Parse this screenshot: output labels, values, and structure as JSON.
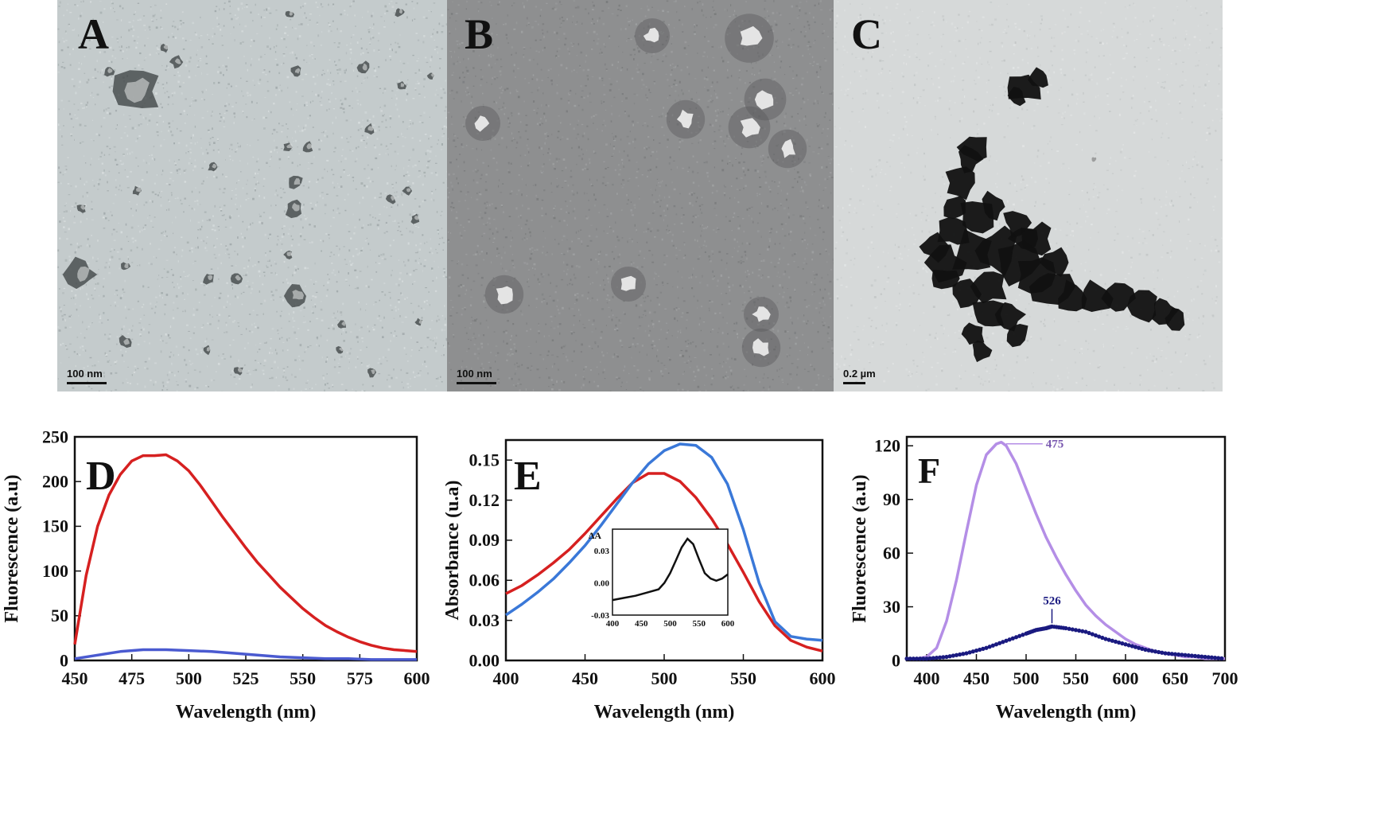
{
  "tem_panels": [
    {
      "letter": "A",
      "scale_label": "100 nm"
    },
    {
      "letter": "B",
      "scale_label": "100 nm"
    },
    {
      "letter": "C",
      "scale_label": "0.2 µm"
    }
  ],
  "colors": {
    "red": "#d62020",
    "blue": "#3a78d8",
    "violet_blue": "#4a5ad0",
    "lavender": "#b48ee6",
    "navy": "#1a1a80",
    "black": "#111111",
    "tem_a_bg": "#c4cbcc",
    "tem_b_bg": "#8e8f90",
    "tem_c_bg": "#d6d9d9"
  },
  "chart_data": [
    {
      "panel": "D",
      "type": "line",
      "xlabel": "Wavelength (nm)",
      "ylabel": "Fluorescence (a.u)",
      "xlim": [
        450,
        600
      ],
      "ylim": [
        0,
        250
      ],
      "xticks": [
        450,
        475,
        500,
        525,
        550,
        575,
        600
      ],
      "yticks": [
        0,
        50,
        100,
        150,
        200,
        250
      ],
      "grid": false,
      "series": [
        {
          "color": "#d62020",
          "x": [
            450,
            455,
            460,
            465,
            470,
            475,
            480,
            485,
            490,
            495,
            500,
            505,
            510,
            515,
            520,
            525,
            530,
            535,
            540,
            545,
            550,
            555,
            560,
            565,
            570,
            575,
            580,
            585,
            590,
            595,
            600
          ],
          "y": [
            18,
            95,
            150,
            185,
            208,
            223,
            229,
            229,
            230,
            223,
            212,
            196,
            178,
            160,
            143,
            126,
            110,
            96,
            82,
            70,
            58,
            48,
            39,
            32,
            26,
            21,
            17,
            14,
            12,
            11,
            10
          ]
        },
        {
          "color": "#4a5ad0",
          "x": [
            450,
            460,
            470,
            480,
            490,
            500,
            510,
            520,
            530,
            540,
            550,
            560,
            570,
            580,
            590,
            600
          ],
          "y": [
            2,
            6,
            10,
            12,
            12,
            11,
            10,
            8,
            6,
            4,
            3,
            2,
            2,
            1,
            1,
            1
          ]
        }
      ]
    },
    {
      "panel": "E",
      "type": "line",
      "xlabel": "Wavelength (nm)",
      "ylabel": "Absorbance (u.a)",
      "xlim": [
        400,
        600
      ],
      "ylim": [
        0,
        0.165
      ],
      "xticks": [
        400,
        450,
        500,
        550,
        600
      ],
      "yticks": [
        "0.00",
        "0.03",
        "0.06",
        "0.09",
        "0.12",
        "0.15"
      ],
      "grid": false,
      "series": [
        {
          "color": "#d62020",
          "x": [
            400,
            410,
            420,
            430,
            440,
            450,
            460,
            470,
            480,
            490,
            500,
            510,
            520,
            530,
            540,
            550,
            560,
            570,
            580,
            590,
            600
          ],
          "y": [
            0.05,
            0.056,
            0.064,
            0.073,
            0.083,
            0.095,
            0.108,
            0.121,
            0.133,
            0.14,
            0.14,
            0.134,
            0.122,
            0.106,
            0.087,
            0.066,
            0.044,
            0.026,
            0.015,
            0.01,
            0.007
          ]
        },
        {
          "color": "#3a78d8",
          "x": [
            400,
            410,
            420,
            430,
            440,
            450,
            460,
            470,
            480,
            490,
            500,
            510,
            520,
            530,
            540,
            550,
            560,
            570,
            580,
            590,
            600
          ],
          "y": [
            0.034,
            0.042,
            0.051,
            0.061,
            0.073,
            0.086,
            0.101,
            0.117,
            0.133,
            0.147,
            0.157,
            0.162,
            0.161,
            0.152,
            0.132,
            0.098,
            0.058,
            0.029,
            0.018,
            0.016,
            0.015
          ]
        }
      ],
      "inset": {
        "ylabel": "ΔA",
        "xlim": [
          400,
          600
        ],
        "ylim": [
          -0.03,
          0.05
        ],
        "xticks": [
          400,
          450,
          500,
          550,
          600
        ],
        "yticks": [
          "-0.03",
          "0.00",
          "0.03"
        ],
        "series": [
          {
            "color": "#111111",
            "x": [
              400,
              420,
              440,
              460,
              480,
              490,
              500,
              510,
              520,
              530,
              540,
              550,
              560,
              570,
              580,
              590,
              600
            ],
            "y": [
              -0.016,
              -0.014,
              -0.012,
              -0.009,
              -0.006,
              0.0,
              0.009,
              0.021,
              0.033,
              0.041,
              0.036,
              0.022,
              0.009,
              0.004,
              0.002,
              0.004,
              0.008
            ]
          }
        ]
      }
    },
    {
      "panel": "F",
      "type": "line",
      "xlabel": "Wavelength (nm)",
      "ylabel": "Fluorescence (a.u)",
      "xlim": [
        380,
        700
      ],
      "ylim": [
        0,
        125
      ],
      "xticks": [
        400,
        450,
        500,
        550,
        600,
        650,
        700
      ],
      "yticks": [
        0,
        30,
        60,
        90,
        120
      ],
      "grid": false,
      "annotations": [
        {
          "text": "475",
          "x": 475,
          "y": 122
        },
        {
          "text": "526",
          "x": 526,
          "y": 19
        }
      ],
      "series": [
        {
          "color": "#b48ee6",
          "style": "solid",
          "x": [
            380,
            390,
            400,
            410,
            420,
            430,
            440,
            450,
            460,
            470,
            475,
            480,
            490,
            500,
            510,
            520,
            530,
            540,
            550,
            560,
            570,
            580,
            590,
            600,
            610,
            620,
            630,
            640,
            650,
            660,
            670,
            680,
            690,
            700
          ],
          "y": [
            1,
            1,
            2,
            7,
            22,
            45,
            72,
            98,
            115,
            121,
            122,
            120,
            110,
            96,
            82,
            69,
            58,
            48,
            39,
            31,
            25,
            20,
            16,
            12,
            9,
            7,
            5,
            4,
            3,
            2,
            2,
            1,
            1,
            1
          ]
        },
        {
          "color": "#1a1a80",
          "style": "dotted",
          "x": [
            380,
            400,
            420,
            440,
            460,
            480,
            500,
            510,
            520,
            526,
            540,
            560,
            580,
            600,
            620,
            640,
            660,
            680,
            700
          ],
          "y": [
            1,
            1,
            2,
            4,
            7,
            11,
            15,
            17,
            18,
            19,
            18,
            16,
            12,
            9,
            6,
            4,
            3,
            2,
            1
          ]
        }
      ]
    }
  ]
}
